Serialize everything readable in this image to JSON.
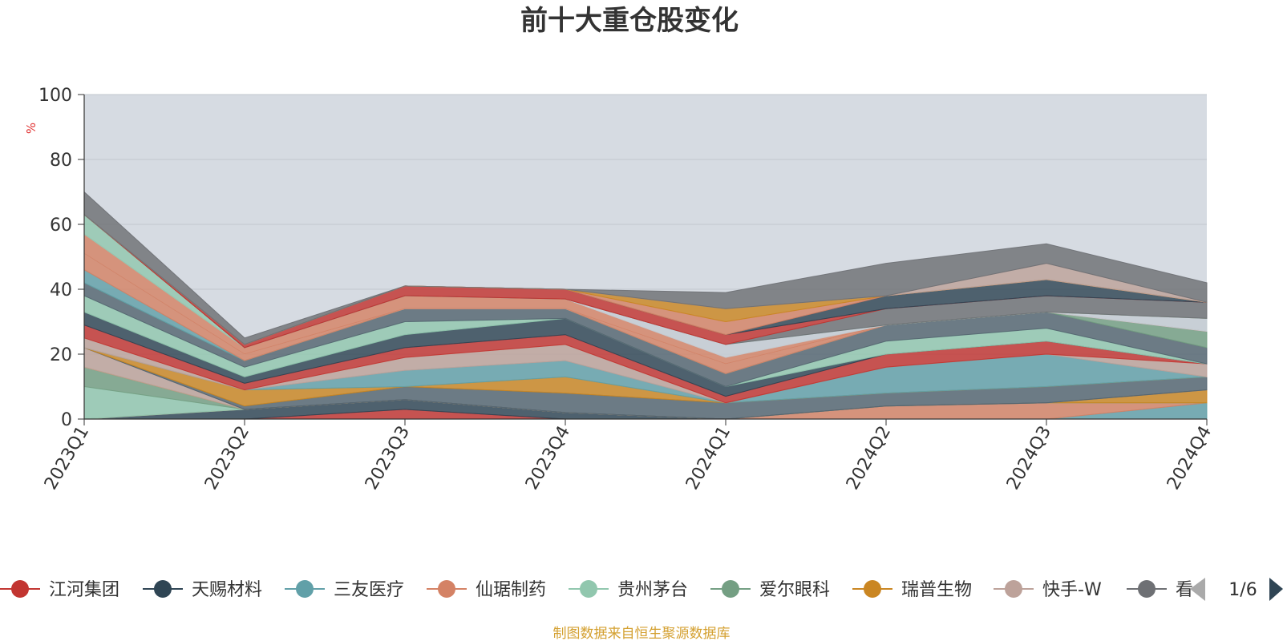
{
  "colors": {
    "plot_bg": "#d6dbe2",
    "axis": "#333333",
    "grid": "#c2c7cf",
    "source_text": "#d4a030",
    "unit_text": "#e03030",
    "series_palette": [
      "#c23531",
      "#2f4554",
      "#61a0a8",
      "#d48265",
      "#91c7ae",
      "#749f83",
      "#ca8622",
      "#bda29a",
      "#6e7074",
      "#546570",
      "#c4ccd3"
    ]
  },
  "legend": {
    "pager": "1/6",
    "prev_icon": "triangle-left-icon",
    "next_icon": "triangle-right-icon"
  },
  "source_note": "制图数据来自恒生聚源数据库",
  "chart_data": {
    "type": "area",
    "stacked": true,
    "title": "前十大重仓股变化",
    "xlabel": "",
    "ylabel": "%",
    "ylim": [
      0,
      100
    ],
    "yticks": [
      0,
      20,
      40,
      60,
      80,
      100
    ],
    "grid": true,
    "legend_position": "bottom",
    "categories": [
      "2023Q1",
      "2023Q2",
      "2023Q3",
      "2023Q4",
      "2024Q1",
      "2024Q2",
      "2024Q3",
      "2024Q4"
    ],
    "series": [
      {
        "name": "江河集团",
        "color": "#c23531",
        "values": [
          0,
          0,
          3,
          0,
          0,
          0,
          0,
          0
        ]
      },
      {
        "name": "天赐材料",
        "color": "#2f4554",
        "values": [
          0,
          3,
          3,
          2,
          0,
          0,
          0,
          0
        ]
      },
      {
        "name": "三友医疗",
        "color": "#61a0a8",
        "values": [
          0,
          0,
          0,
          0,
          0,
          0,
          0,
          5
        ]
      },
      {
        "name": "仙琚制药",
        "color": "#d48265",
        "values": [
          0,
          0,
          0,
          0,
          0,
          4,
          5,
          0
        ]
      },
      {
        "name": "贵州茅台",
        "color": "#91c7ae",
        "values": [
          10,
          0,
          0,
          0,
          0,
          0,
          0,
          0
        ]
      },
      {
        "name": "爱尔眼科",
        "color": "#749f83",
        "values": [
          6,
          0,
          0,
          0,
          0,
          0,
          0,
          0
        ]
      },
      {
        "name": "瑞普生物",
        "color": "#ca8622",
        "values": [
          0,
          0,
          0,
          0,
          0,
          0,
          0,
          4
        ]
      },
      {
        "name": "快手-W",
        "color": "#bda29a",
        "values": [
          6,
          0,
          0,
          0,
          0,
          0,
          0,
          0
        ]
      },
      {
        "name": "看",
        "color": "#6e7074",
        "values": [
          0,
          0,
          0,
          0,
          0,
          0,
          0,
          0
        ]
      },
      {
        "values": [
          0,
          1,
          4,
          6,
          5,
          4,
          5,
          4
        ],
        "color": "#546570"
      },
      {
        "values": [
          0,
          5,
          0,
          5,
          0,
          0,
          0,
          0
        ],
        "color": "#ca8622"
      },
      {
        "values": [
          0,
          0,
          5,
          5,
          0,
          8,
          10,
          0
        ],
        "color": "#61a0a8"
      },
      {
        "values": [
          3,
          0,
          4,
          5,
          0,
          0,
          0,
          4
        ],
        "color": "#bda29a"
      },
      {
        "values": [
          4,
          2,
          3,
          3,
          2,
          4,
          4,
          0
        ],
        "color": "#c23531"
      },
      {
        "values": [
          4,
          2,
          4,
          5,
          3,
          0,
          0,
          0
        ],
        "color": "#2f4554"
      },
      {
        "values": [
          5,
          3,
          4,
          0,
          0,
          4,
          4,
          0
        ],
        "color": "#91c7ae"
      },
      {
        "values": [
          4,
          2,
          4,
          3,
          4,
          5,
          5,
          5
        ],
        "color": "#546570"
      },
      {
        "values": [
          0,
          0,
          0,
          0,
          0,
          0,
          0,
          5
        ],
        "color": "#749f83"
      },
      {
        "values": [
          4,
          0,
          0,
          0,
          0,
          0,
          0,
          0
        ],
        "color": "#61a0a8"
      },
      {
        "values": [
          5,
          2,
          0,
          0,
          3,
          0,
          0,
          0
        ],
        "color": "#d48265"
      },
      {
        "values": [
          0,
          0,
          0,
          0,
          0,
          0,
          0,
          4
        ],
        "color": "#c4ccd3"
      },
      {
        "values": [
          6,
          2,
          4,
          3,
          2,
          0,
          0,
          0
        ],
        "color": "#d48265"
      },
      {
        "values": [
          0,
          0,
          0,
          0,
          4,
          0,
          0,
          0
        ],
        "color": "#c4ccd3"
      },
      {
        "values": [
          6,
          0,
          0,
          0,
          0,
          0,
          0,
          0
        ],
        "color": "#91c7ae"
      },
      {
        "values": [
          0,
          0,
          0,
          0,
          0,
          5,
          5,
          5
        ],
        "color": "#6e7074"
      },
      {
        "values": [
          0,
          1,
          3,
          3,
          3,
          0,
          0,
          0
        ],
        "color": "#c23531"
      },
      {
        "values": [
          0,
          0,
          0,
          0,
          0,
          4,
          5,
          0
        ],
        "color": "#2f4554"
      },
      {
        "values": [
          0,
          0,
          0,
          0,
          4,
          0,
          0,
          0
        ],
        "color": "#d48265"
      },
      {
        "values": [
          0,
          0,
          0,
          0,
          4,
          0,
          0,
          0
        ],
        "color": "#ca8622"
      },
      {
        "values": [
          0,
          0,
          0,
          0,
          0,
          0,
          5,
          0
        ],
        "color": "#bda29a"
      },
      {
        "values": [
          7,
          2,
          0,
          0,
          5,
          10,
          6,
          6
        ],
        "color": "#6e7074"
      }
    ]
  }
}
